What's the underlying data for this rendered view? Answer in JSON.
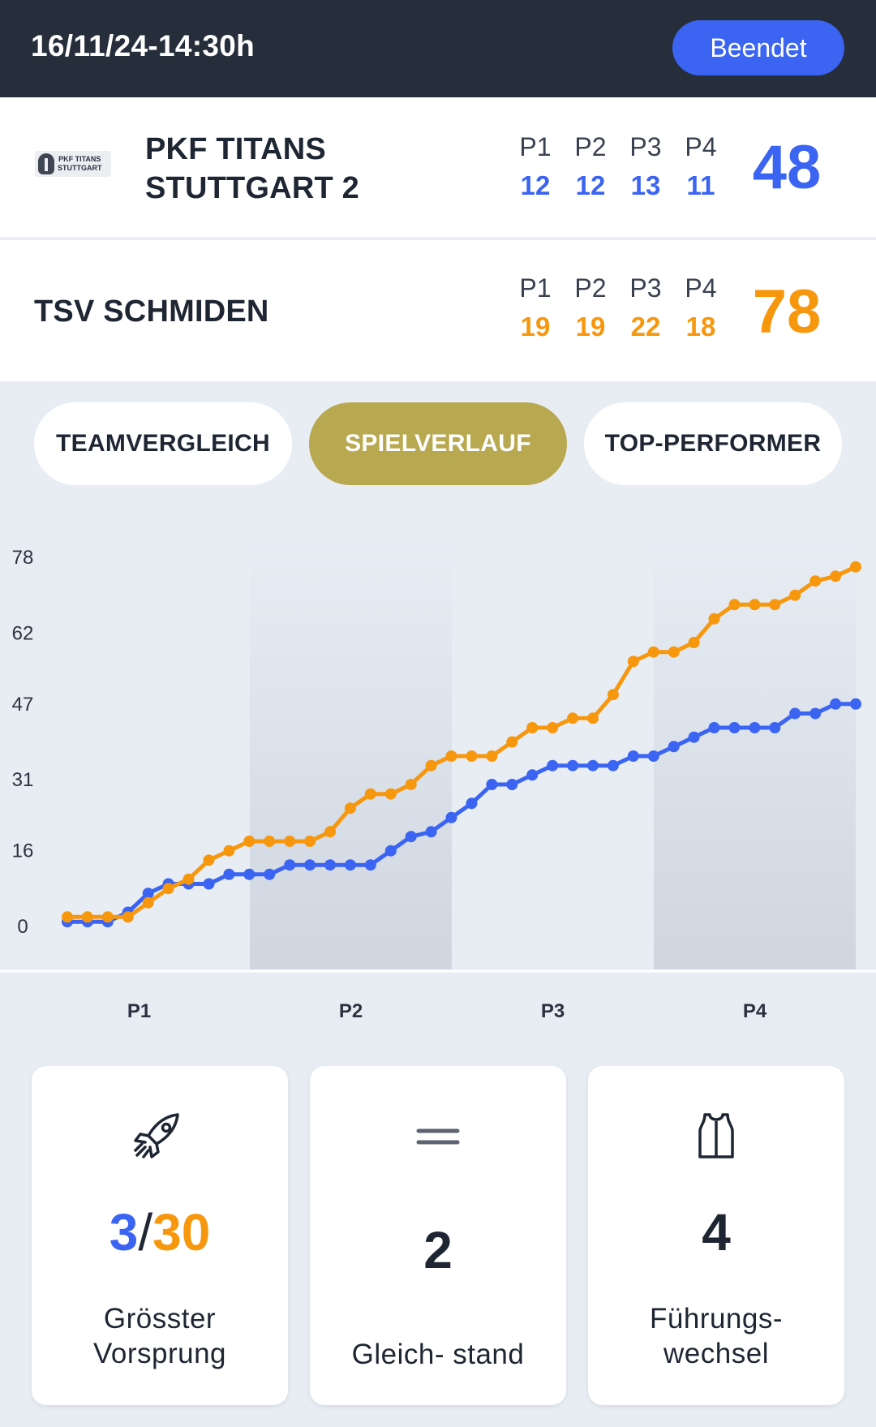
{
  "header": {
    "datetime": "16/11/24-14:30h",
    "status": "Beendet"
  },
  "home": {
    "logo_text": "PKF TITANS STUTTGART",
    "name_line1": "PKF TITANS",
    "name_line2": "STUTTGART 2",
    "periods": [
      {
        "label": "P1",
        "value": "12"
      },
      {
        "label": "P2",
        "value": "12"
      },
      {
        "label": "P3",
        "value": "13"
      },
      {
        "label": "P4",
        "value": "11"
      }
    ],
    "total": "48",
    "color": "#3b64f2"
  },
  "away": {
    "name": "TSV SCHMIDEN",
    "periods": [
      {
        "label": "P1",
        "value": "19"
      },
      {
        "label": "P2",
        "value": "19"
      },
      {
        "label": "P3",
        "value": "22"
      },
      {
        "label": "P4",
        "value": "18"
      }
    ],
    "total": "78",
    "color": "#f7970e"
  },
  "tabs": [
    {
      "label": "TEAMVERGLEICH",
      "active": false
    },
    {
      "label": "SPIELVERLAUF",
      "active": true
    },
    {
      "label": "TOP-PERFORMER",
      "active": false
    }
  ],
  "chart_data": {
    "type": "line",
    "title": "",
    "y_ticks": [
      "78",
      "62",
      "47",
      "31",
      "16",
      "0"
    ],
    "ylim": [
      0,
      78
    ],
    "quarters": [
      "P1",
      "P2",
      "P3",
      "P4"
    ],
    "series": [
      {
        "team": "home",
        "color": "#3b64f2",
        "values": [
          1,
          1,
          1,
          3,
          7,
          9,
          9,
          9,
          11,
          11,
          11,
          13,
          13,
          13,
          13,
          13,
          16,
          19,
          20,
          23,
          26,
          30,
          30,
          32,
          34,
          34,
          34,
          34,
          36,
          36,
          38,
          40,
          42,
          42,
          42,
          42,
          45,
          45,
          47,
          47
        ]
      },
      {
        "team": "away",
        "color": "#f7970e",
        "values": [
          2,
          2,
          2,
          2,
          5,
          8,
          10,
          14,
          16,
          18,
          18,
          18,
          18,
          20,
          25,
          28,
          28,
          30,
          34,
          36,
          36,
          36,
          39,
          42,
          42,
          44,
          44,
          49,
          56,
          58,
          58,
          60,
          65,
          68,
          68,
          68,
          70,
          73,
          74,
          76
        ]
      }
    ]
  },
  "stats": [
    {
      "icon": "rocket-icon",
      "value_home": "3",
      "separator": "/",
      "value_away": "30",
      "caption_line1": "Grösster",
      "caption_line2": "Vorsprung"
    },
    {
      "icon": "equals-icon",
      "value": "2",
      "caption_line1": "Gleich- stand"
    },
    {
      "icon": "jersey-icon",
      "value": "4",
      "caption_line1": "Führungs-",
      "caption_line2": "wechsel"
    }
  ]
}
